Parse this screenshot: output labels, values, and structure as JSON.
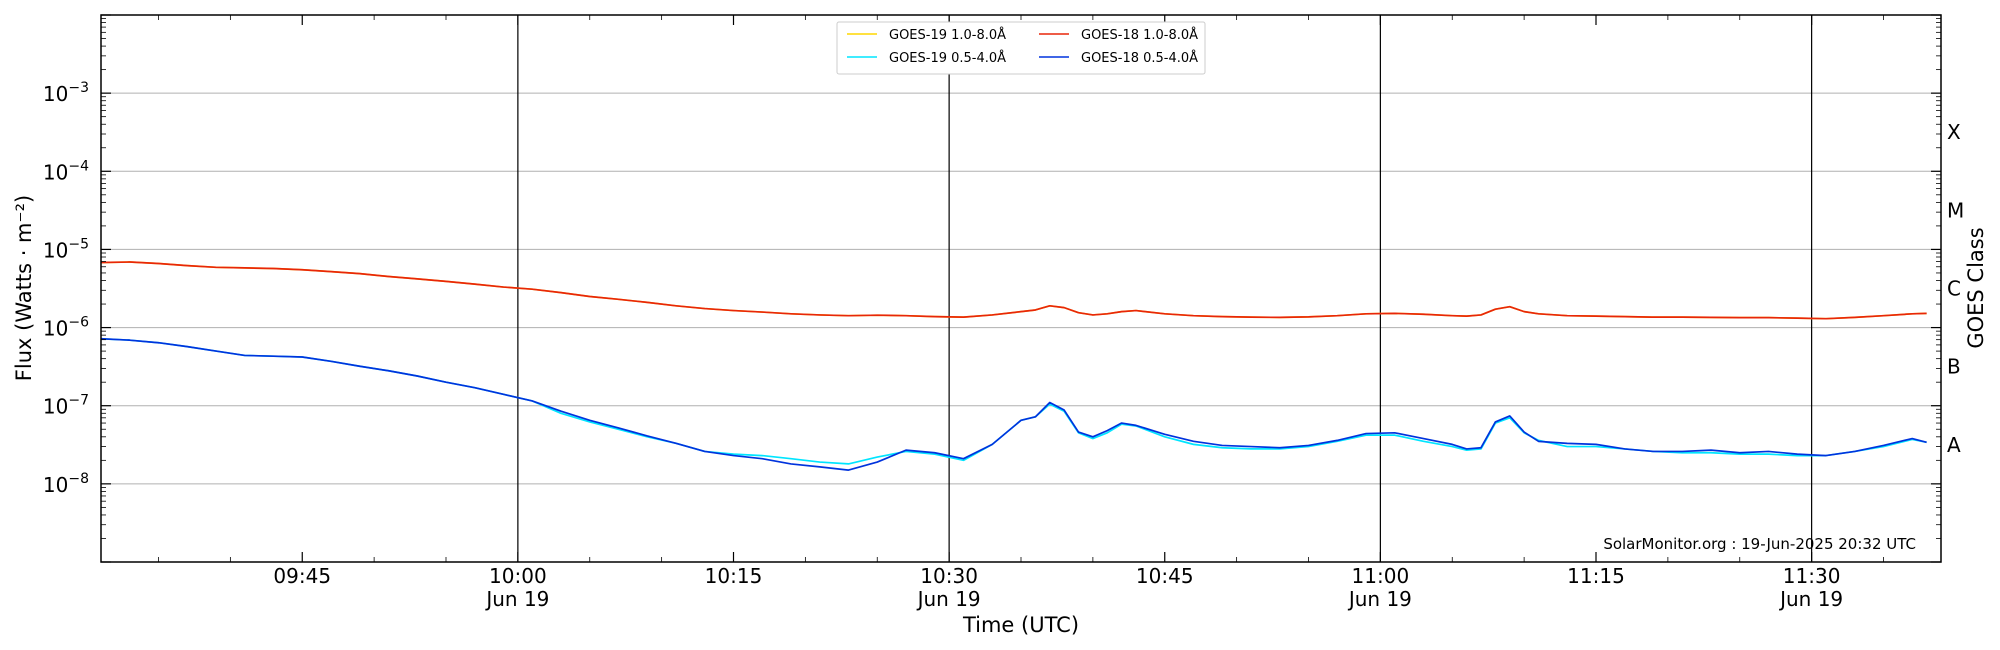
{
  "chart_data": {
    "type": "line",
    "xlabel": "Time (UTC)",
    "ylabel": "Flux (Watts · m⁻²)",
    "ylabel_right": "GOES Class",
    "credit": "SolarMonitor.org : 19-Jun-2025 20:32 UTC",
    "xlim": [
      "09:31",
      "11:39"
    ],
    "ylim": [
      1e-09,
      0.01
    ],
    "yscale": "log",
    "grid": "horizontal",
    "legend_position": "top-center",
    "x_ticks": [
      {
        "time": "09:45",
        "label": "09:45",
        "date": ""
      },
      {
        "time": "10:00",
        "label": "10:00",
        "date": "Jun 19"
      },
      {
        "time": "10:15",
        "label": "10:15",
        "date": ""
      },
      {
        "time": "10:30",
        "label": "10:30",
        "date": "Jun 19"
      },
      {
        "time": "10:45",
        "label": "10:45",
        "date": ""
      },
      {
        "time": "11:00",
        "label": "11:00",
        "date": "Jun 19"
      },
      {
        "time": "11:15",
        "label": "11:15",
        "date": ""
      },
      {
        "time": "11:30",
        "label": "11:30",
        "date": "Jun 19"
      }
    ],
    "vlines": [
      "10:00",
      "10:30",
      "11:00",
      "11:30"
    ],
    "y_ticks": [
      {
        "exp": -8,
        "label": "10",
        "sup": "−8"
      },
      {
        "exp": -7,
        "label": "10",
        "sup": "−7"
      },
      {
        "exp": -6,
        "label": "10",
        "sup": "−6"
      },
      {
        "exp": -5,
        "label": "10",
        "sup": "−5"
      },
      {
        "exp": -4,
        "label": "10",
        "sup": "−4"
      },
      {
        "exp": -3,
        "label": "10",
        "sup": "−3"
      }
    ],
    "goes_classes": [
      {
        "label": "X",
        "exp": -3.5
      },
      {
        "label": "M",
        "exp": -4.5
      },
      {
        "label": "C",
        "exp": -5.5
      },
      {
        "label": "B",
        "exp": -6.5
      },
      {
        "label": "A",
        "exp": -7.5
      }
    ],
    "legend": [
      {
        "label": "GOES-19 1.0-8.0Å",
        "color": "#FFD700"
      },
      {
        "label": "GOES-19 0.5-4.0Å",
        "color": "#00E5FF"
      },
      {
        "label": "GOES-18 1.0-8.0Å",
        "color": "#E8260A"
      },
      {
        "label": "GOES-18 0.5-4.0Å",
        "color": "#0033DD"
      }
    ],
    "series": [
      {
        "name": "GOES-19 1.0-8.0Å",
        "color": "#FFD700",
        "x": [
          "09:31",
          "09:33",
          "09:35",
          "09:37",
          "09:39",
          "09:41",
          "09:43",
          "09:45",
          "09:47",
          "09:49",
          "09:51",
          "09:53",
          "09:55",
          "09:57",
          "09:59",
          "10:01",
          "10:03",
          "10:05",
          "10:07",
          "10:09",
          "10:11",
          "10:13",
          "10:15",
          "10:17",
          "10:19",
          "10:21",
          "10:23",
          "10:25",
          "10:27",
          "10:29",
          "10:31",
          "10:33",
          "10:35",
          "10:36",
          "10:37",
          "10:38",
          "10:39",
          "10:40",
          "10:41",
          "10:42",
          "10:43",
          "10:45",
          "10:47",
          "10:49",
          "10:51",
          "10:53",
          "10:55",
          "10:57",
          "10:59",
          "11:01",
          "11:03",
          "11:05",
          "11:06",
          "11:07",
          "11:08",
          "11:09",
          "11:10",
          "11:11",
          "11:13",
          "11:15",
          "11:17",
          "11:19",
          "11:21",
          "11:23",
          "11:25",
          "11:27",
          "11:29",
          "11:31",
          "11:33",
          "11:35",
          "11:37",
          "11:38"
        ],
        "y": [
          6.8e-06,
          6.9e-06,
          6.6e-06,
          6.2e-06,
          5.9e-06,
          5.8e-06,
          5.7e-06,
          5.5e-06,
          5.2e-06,
          4.9e-06,
          4.5e-06,
          4.2e-06,
          3.9e-06,
          3.6e-06,
          3.3e-06,
          3.1e-06,
          2.8e-06,
          2.5e-06,
          2.3e-06,
          2.1e-06,
          1.9e-06,
          1.75e-06,
          1.65e-06,
          1.58e-06,
          1.5e-06,
          1.45e-06,
          1.42e-06,
          1.44e-06,
          1.42e-06,
          1.38e-06,
          1.36e-06,
          1.45e-06,
          1.6e-06,
          1.68e-06,
          1.9e-06,
          1.8e-06,
          1.55e-06,
          1.45e-06,
          1.5e-06,
          1.6e-06,
          1.65e-06,
          1.5e-06,
          1.42e-06,
          1.38e-06,
          1.36e-06,
          1.35e-06,
          1.37e-06,
          1.42e-06,
          1.5e-06,
          1.52e-06,
          1.48e-06,
          1.42e-06,
          1.4e-06,
          1.45e-06,
          1.72e-06,
          1.85e-06,
          1.6e-06,
          1.5e-06,
          1.42e-06,
          1.4e-06,
          1.38e-06,
          1.36e-06,
          1.36e-06,
          1.35e-06,
          1.34e-06,
          1.34e-06,
          1.32e-06,
          1.3e-06,
          1.35e-06,
          1.42e-06,
          1.5e-06,
          1.52e-06
        ]
      },
      {
        "name": "GOES-18 1.0-8.0Å",
        "color": "#E8260A",
        "x": [
          "09:31",
          "09:33",
          "09:35",
          "09:37",
          "09:39",
          "09:41",
          "09:43",
          "09:45",
          "09:47",
          "09:49",
          "09:51",
          "09:53",
          "09:55",
          "09:57",
          "09:59",
          "10:01",
          "10:03",
          "10:05",
          "10:07",
          "10:09",
          "10:11",
          "10:13",
          "10:15",
          "10:17",
          "10:19",
          "10:21",
          "10:23",
          "10:25",
          "10:27",
          "10:29",
          "10:31",
          "10:33",
          "10:35",
          "10:36",
          "10:37",
          "10:38",
          "10:39",
          "10:40",
          "10:41",
          "10:42",
          "10:43",
          "10:45",
          "10:47",
          "10:49",
          "10:51",
          "10:53",
          "10:55",
          "10:57",
          "10:59",
          "11:01",
          "11:03",
          "11:05",
          "11:06",
          "11:07",
          "11:08",
          "11:09",
          "11:10",
          "11:11",
          "11:13",
          "11:15",
          "11:17",
          "11:19",
          "11:21",
          "11:23",
          "11:25",
          "11:27",
          "11:29",
          "11:31",
          "11:33",
          "11:35",
          "11:37",
          "11:38"
        ],
        "y": [
          6.8e-06,
          6.9e-06,
          6.6e-06,
          6.2e-06,
          5.9e-06,
          5.8e-06,
          5.7e-06,
          5.5e-06,
          5.2e-06,
          4.9e-06,
          4.5e-06,
          4.2e-06,
          3.9e-06,
          3.6e-06,
          3.3e-06,
          3.1e-06,
          2.8e-06,
          2.5e-06,
          2.3e-06,
          2.1e-06,
          1.9e-06,
          1.75e-06,
          1.65e-06,
          1.58e-06,
          1.5e-06,
          1.45e-06,
          1.42e-06,
          1.44e-06,
          1.42e-06,
          1.38e-06,
          1.36e-06,
          1.45e-06,
          1.6e-06,
          1.68e-06,
          1.9e-06,
          1.8e-06,
          1.55e-06,
          1.45e-06,
          1.5e-06,
          1.6e-06,
          1.65e-06,
          1.5e-06,
          1.42e-06,
          1.38e-06,
          1.36e-06,
          1.35e-06,
          1.37e-06,
          1.42e-06,
          1.5e-06,
          1.52e-06,
          1.48e-06,
          1.42e-06,
          1.4e-06,
          1.45e-06,
          1.72e-06,
          1.85e-06,
          1.6e-06,
          1.5e-06,
          1.42e-06,
          1.4e-06,
          1.38e-06,
          1.36e-06,
          1.36e-06,
          1.35e-06,
          1.34e-06,
          1.34e-06,
          1.32e-06,
          1.3e-06,
          1.35e-06,
          1.42e-06,
          1.5e-06,
          1.52e-06
        ]
      },
      {
        "name": "GOES-19 0.5-4.0Å",
        "color": "#00E5FF",
        "x": [
          "09:31",
          "09:33",
          "09:35",
          "09:37",
          "09:39",
          "09:41",
          "09:43",
          "09:45",
          "09:47",
          "09:49",
          "09:51",
          "09:53",
          "09:55",
          "09:57",
          "09:59",
          "10:01",
          "10:03",
          "10:05",
          "10:07",
          "10:09",
          "10:11",
          "10:13",
          "10:15",
          "10:17",
          "10:19",
          "10:21",
          "10:23",
          "10:25",
          "10:27",
          "10:29",
          "10:31",
          "10:33",
          "10:35",
          "10:36",
          "10:37",
          "10:38",
          "10:39",
          "10:40",
          "10:41",
          "10:42",
          "10:43",
          "10:45",
          "10:47",
          "10:49",
          "10:51",
          "10:53",
          "10:55",
          "10:57",
          "10:59",
          "11:01",
          "11:03",
          "11:05",
          "11:06",
          "11:07",
          "11:08",
          "11:09",
          "11:10",
          "11:11",
          "11:13",
          "11:15",
          "11:17",
          "11:19",
          "11:21",
          "11:23",
          "11:25",
          "11:27",
          "11:29",
          "11:31",
          "11:33",
          "11:35",
          "11:37",
          "11:38"
        ],
        "y": [
          7.2e-07,
          6.9e-07,
          6.4e-07,
          5.7e-07,
          5e-07,
          4.4e-07,
          4.3e-07,
          4.2e-07,
          3.7e-07,
          3.2e-07,
          2.8e-07,
          2.4e-07,
          2e-07,
          1.7e-07,
          1.4e-07,
          1.15e-07,
          8e-08,
          6.2e-08,
          5e-08,
          4e-08,
          3.3e-08,
          2.6e-08,
          2.4e-08,
          2.3e-08,
          2.1e-08,
          1.9e-08,
          1.8e-08,
          2.2e-08,
          2.6e-08,
          2.4e-08,
          2e-08,
          3.2e-08,
          6.5e-08,
          7.2e-08,
          1.05e-07,
          8.5e-08,
          4.5e-08,
          3.8e-08,
          4.5e-08,
          5.8e-08,
          5.5e-08,
          4e-08,
          3.2e-08,
          2.9e-08,
          2.8e-08,
          2.8e-08,
          3e-08,
          3.5e-08,
          4.2e-08,
          4.2e-08,
          3.5e-08,
          3e-08,
          2.7e-08,
          2.8e-08,
          6e-08,
          7e-08,
          4.5e-08,
          3.6e-08,
          3e-08,
          3e-08,
          2.8e-08,
          2.6e-08,
          2.5e-08,
          2.5e-08,
          2.4e-08,
          2.4e-08,
          2.3e-08,
          2.3e-08,
          2.6e-08,
          3e-08,
          3.7e-08,
          3.4e-08
        ]
      },
      {
        "name": "GOES-18 0.5-4.0Å",
        "color": "#0033DD",
        "x": [
          "09:31",
          "09:33",
          "09:35",
          "09:37",
          "09:39",
          "09:41",
          "09:43",
          "09:45",
          "09:47",
          "09:49",
          "09:51",
          "09:53",
          "09:55",
          "09:57",
          "09:59",
          "10:01",
          "10:03",
          "10:05",
          "10:07",
          "10:09",
          "10:11",
          "10:13",
          "10:15",
          "10:17",
          "10:19",
          "10:21",
          "10:23",
          "10:25",
          "10:27",
          "10:29",
          "10:31",
          "10:33",
          "10:35",
          "10:36",
          "10:37",
          "10:38",
          "10:39",
          "10:40",
          "10:41",
          "10:42",
          "10:43",
          "10:45",
          "10:47",
          "10:49",
          "10:51",
          "10:53",
          "10:55",
          "10:57",
          "10:59",
          "11:01",
          "11:03",
          "11:05",
          "11:06",
          "11:07",
          "11:08",
          "11:09",
          "11:10",
          "11:11",
          "11:13",
          "11:15",
          "11:17",
          "11:19",
          "11:21",
          "11:23",
          "11:25",
          "11:27",
          "11:29",
          "11:31",
          "11:33",
          "11:35",
          "11:37",
          "11:38"
        ],
        "y": [
          7.2e-07,
          6.9e-07,
          6.4e-07,
          5.7e-07,
          5e-07,
          4.4e-07,
          4.3e-07,
          4.2e-07,
          3.7e-07,
          3.2e-07,
          2.8e-07,
          2.4e-07,
          2e-07,
          1.7e-07,
          1.4e-07,
          1.15e-07,
          8.5e-08,
          6.5e-08,
          5.2e-08,
          4.1e-08,
          3.3e-08,
          2.6e-08,
          2.3e-08,
          2.1e-08,
          1.8e-08,
          1.65e-08,
          1.5e-08,
          1.9e-08,
          2.7e-08,
          2.5e-08,
          2.1e-08,
          3.2e-08,
          6.5e-08,
          7.2e-08,
          1.1e-07,
          8.8e-08,
          4.6e-08,
          4e-08,
          4.8e-08,
          6e-08,
          5.6e-08,
          4.3e-08,
          3.5e-08,
          3.1e-08,
          3e-08,
          2.9e-08,
          3.1e-08,
          3.6e-08,
          4.4e-08,
          4.5e-08,
          3.8e-08,
          3.2e-08,
          2.8e-08,
          2.9e-08,
          6.2e-08,
          7.4e-08,
          4.6e-08,
          3.5e-08,
          3.3e-08,
          3.2e-08,
          2.8e-08,
          2.6e-08,
          2.6e-08,
          2.7e-08,
          2.5e-08,
          2.6e-08,
          2.4e-08,
          2.3e-08,
          2.6e-08,
          3.1e-08,
          3.8e-08,
          3.4e-08
        ]
      }
    ]
  }
}
